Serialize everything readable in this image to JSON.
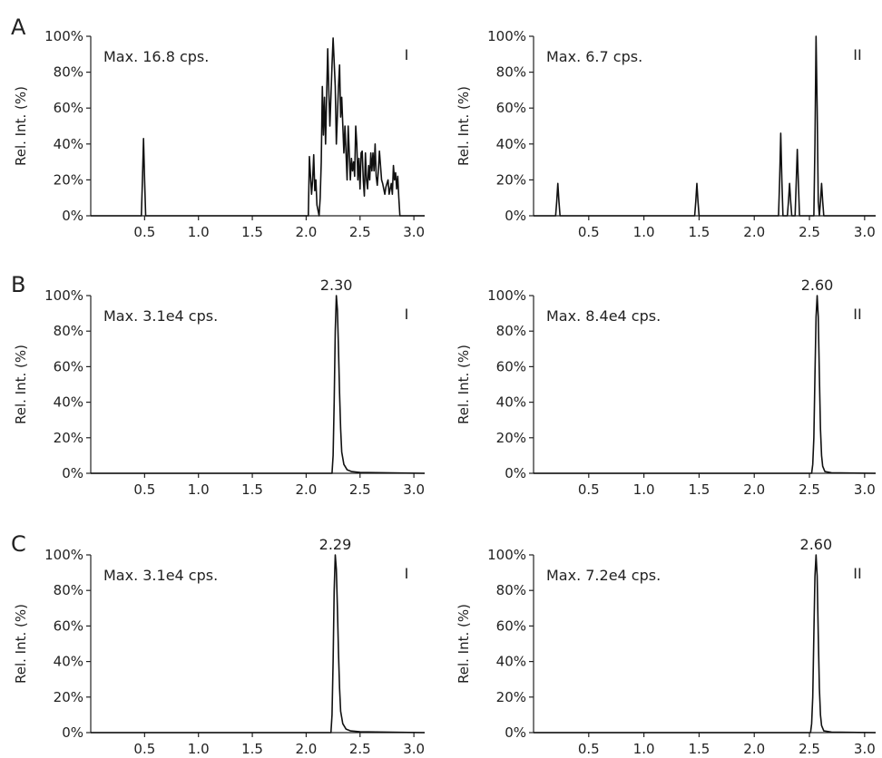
{
  "panel_letters": [
    "A",
    "B",
    "C"
  ],
  "colors": {
    "trace": "#111111",
    "axis": "#222222"
  },
  "chart_data": [
    {
      "row": "A",
      "tag": "I",
      "type": "line",
      "annotation": "Max. 16.8 cps.",
      "peak_label": "",
      "ylabel": "Rel. Int. (%)",
      "xlim": [
        0,
        3.1
      ],
      "ylim": [
        0,
        100
      ],
      "xticks": [
        "0.5",
        "1.0",
        "1.5",
        "2.0",
        "2.5",
        "3.0"
      ],
      "yticks": [
        "0%",
        "20%",
        "40%",
        "60%",
        "80%",
        "100%"
      ],
      "series": [
        {
          "x": [
            0,
            0.47,
            0.48,
            0.49,
            0.5,
            0.51,
            2.02,
            2.03,
            2.05,
            2.06,
            2.07,
            2.08,
            2.09,
            2.1,
            2.11,
            2.12,
            2.13,
            2.14,
            2.15,
            2.16,
            2.17,
            2.18,
            2.2,
            2.21,
            2.22,
            2.24,
            2.25,
            2.27,
            2.28,
            2.3,
            2.31,
            2.32,
            2.33,
            2.35,
            2.36,
            2.38,
            2.39,
            2.4,
            2.41,
            2.42,
            2.43,
            2.44,
            2.45,
            2.46,
            2.47,
            2.48,
            2.49,
            2.5,
            2.51,
            2.52,
            2.53,
            2.54,
            2.55,
            2.56,
            2.57,
            2.58,
            2.59,
            2.6,
            2.61,
            2.62,
            2.63,
            2.64,
            2.65,
            2.66,
            2.67,
            2.68,
            2.7,
            2.71,
            2.72,
            2.73,
            2.74,
            2.75,
            2.76,
            2.77,
            2.78,
            2.79,
            2.8,
            2.81,
            2.82,
            2.83,
            2.84,
            2.85,
            2.86,
            2.87,
            2.88,
            2.89,
            2.9,
            2.91,
            2.92,
            2.93,
            2.94,
            2.95,
            2.96,
            2.97,
            3.1
          ],
          "y": [
            0,
            0,
            20,
            43,
            20,
            0,
            0,
            33,
            12,
            20,
            34,
            14,
            20,
            6,
            3,
            0,
            10,
            30,
            72,
            45,
            66,
            40,
            93,
            70,
            50,
            84,
            99,
            72,
            40,
            72,
            84,
            55,
            66,
            35,
            50,
            20,
            50,
            35,
            20,
            32,
            25,
            30,
            22,
            50,
            40,
            20,
            32,
            15,
            35,
            36,
            20,
            11,
            35,
            20,
            15,
            28,
            20,
            35,
            25,
            35,
            25,
            40,
            22,
            17,
            25,
            36,
            20,
            18,
            15,
            12,
            16,
            18,
            20,
            12,
            15,
            18,
            12,
            28,
            20,
            24,
            15,
            22,
            10,
            0,
            0,
            0,
            0,
            0,
            0,
            0,
            0,
            0,
            0,
            0,
            0
          ]
        }
      ]
    },
    {
      "row": "A",
      "tag": "II",
      "type": "line",
      "annotation": "Max. 6.7 cps.",
      "peak_label": "",
      "ylabel": "Rel. Int. (%)",
      "xlim": [
        0,
        3.1
      ],
      "ylim": [
        0,
        100
      ],
      "xticks": [
        "0.5",
        "1.0",
        "1.5",
        "2.0",
        "2.5",
        "3.0"
      ],
      "yticks": [
        "0%",
        "20%",
        "40%",
        "60%",
        "80%",
        "100%"
      ],
      "series": [
        {
          "x": [
            0,
            0.2,
            0.21,
            0.22,
            0.23,
            0.24,
            1.46,
            1.47,
            1.48,
            1.49,
            1.5,
            2.22,
            2.23,
            2.24,
            2.25,
            2.26,
            2.3,
            2.31,
            2.32,
            2.33,
            2.34,
            2.37,
            2.38,
            2.39,
            2.4,
            2.41,
            2.54,
            2.55,
            2.56,
            2.57,
            2.58,
            2.59,
            2.6,
            2.61,
            2.62,
            2.63,
            3.1
          ],
          "y": [
            0,
            0,
            8,
            18,
            8,
            0,
            0,
            8,
            18,
            8,
            0,
            0,
            20,
            46,
            20,
            0,
            0,
            8,
            18,
            8,
            0,
            0,
            18,
            37,
            18,
            0,
            0,
            40,
            100,
            60,
            8,
            0,
            8,
            18,
            8,
            0,
            0
          ]
        }
      ]
    },
    {
      "row": "B",
      "tag": "I",
      "type": "line",
      "annotation": "Max. 3.1e4 cps.",
      "peak_label": "2.30",
      "ylabel": "Rel. Int. (%)",
      "xlim": [
        0,
        3.1
      ],
      "ylim": [
        0,
        100
      ],
      "xticks": [
        "0.5",
        "1.0",
        "1.5",
        "2.0",
        "2.5",
        "3.0"
      ],
      "yticks": [
        "0%",
        "20%",
        "40%",
        "60%",
        "80%",
        "100%"
      ],
      "series": [
        {
          "x": [
            0,
            2.24,
            2.25,
            2.26,
            2.27,
            2.28,
            2.29,
            2.3,
            2.31,
            2.32,
            2.33,
            2.35,
            2.38,
            2.42,
            2.5,
            3.1
          ],
          "y": [
            0,
            0,
            10,
            40,
            80,
            100,
            92,
            70,
            45,
            25,
            12,
            5,
            2,
            1,
            0.5,
            0
          ]
        }
      ]
    },
    {
      "row": "B",
      "tag": "II",
      "type": "line",
      "annotation": "Max. 8.4e4 cps.",
      "peak_label": "2.60",
      "ylabel": "Rel. Int. (%)",
      "xlim": [
        0,
        3.1
      ],
      "ylim": [
        0,
        100
      ],
      "xticks": [
        "0.5",
        "1.0",
        "1.5",
        "2.0",
        "2.5",
        "3.0"
      ],
      "yticks": [
        "0%",
        "20%",
        "40%",
        "60%",
        "80%",
        "100%"
      ],
      "series": [
        {
          "x": [
            0,
            2.52,
            2.53,
            2.54,
            2.55,
            2.56,
            2.57,
            2.58,
            2.59,
            2.6,
            2.61,
            2.62,
            2.64,
            2.7,
            3.1
          ],
          "y": [
            0,
            0,
            5,
            20,
            55,
            88,
            100,
            88,
            55,
            25,
            10,
            4,
            1,
            0.3,
            0
          ]
        }
      ]
    },
    {
      "row": "C",
      "tag": "I",
      "type": "line",
      "annotation": "Max. 3.1e4 cps.",
      "peak_label": "2.29",
      "ylabel": "Rel. Int. (%)",
      "xlim": [
        0,
        3.1
      ],
      "ylim": [
        0,
        100
      ],
      "xticks": [
        "0.5",
        "1.0",
        "1.5",
        "2.0",
        "2.5",
        "3.0"
      ],
      "yticks": [
        "0%",
        "20%",
        "40%",
        "60%",
        "80%",
        "100%"
      ],
      "series": [
        {
          "x": [
            0,
            2.23,
            2.24,
            2.25,
            2.26,
            2.27,
            2.28,
            2.29,
            2.3,
            2.31,
            2.32,
            2.34,
            2.37,
            2.41,
            2.5,
            3.1
          ],
          "y": [
            0,
            0,
            10,
            40,
            80,
            100,
            92,
            70,
            45,
            25,
            12,
            5,
            2,
            1,
            0.5,
            0
          ]
        }
      ]
    },
    {
      "row": "C",
      "tag": "II",
      "type": "line",
      "annotation": "Max. 7.2e4 cps.",
      "peak_label": "2.60",
      "ylabel": "Rel. Int. (%)",
      "xlim": [
        0,
        3.1
      ],
      "ylim": [
        0,
        100
      ],
      "xticks": [
        "0.5",
        "1.0",
        "1.5",
        "2.0",
        "2.5",
        "3.0"
      ],
      "yticks": [
        "0%",
        "20%",
        "40%",
        "60%",
        "80%",
        "100%"
      ],
      "series": [
        {
          "x": [
            0,
            2.51,
            2.52,
            2.53,
            2.54,
            2.55,
            2.56,
            2.57,
            2.58,
            2.59,
            2.6,
            2.61,
            2.63,
            2.7,
            3.1
          ],
          "y": [
            0,
            0,
            5,
            20,
            55,
            88,
            100,
            88,
            55,
            25,
            10,
            4,
            1,
            0.3,
            0
          ]
        }
      ]
    }
  ]
}
